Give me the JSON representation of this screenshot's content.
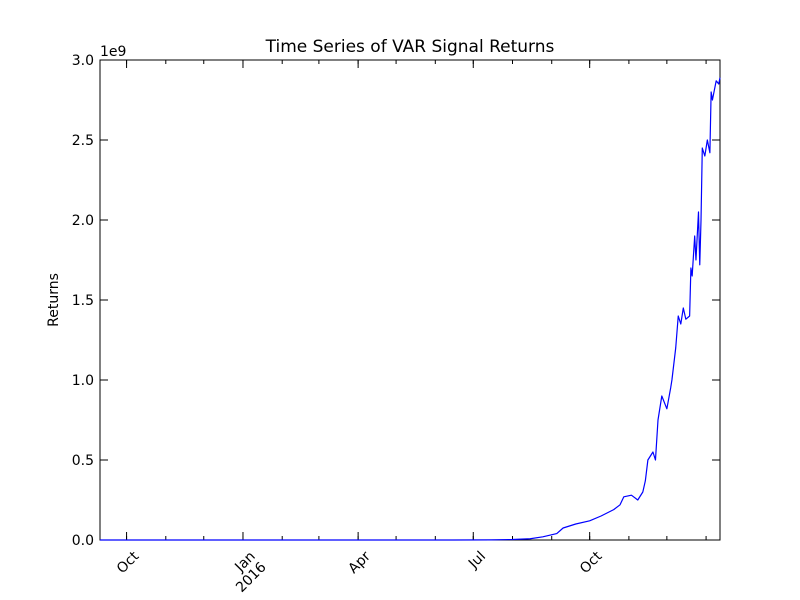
{
  "chart_data": {
    "type": "line",
    "title": "Time Series of VAR Signal Returns",
    "xlabel": "",
    "ylabel": "Returns",
    "y_offset_label": "1e9",
    "x_ticks": [
      {
        "date": "2015-10-01",
        "label": "Oct"
      },
      {
        "date": "2016-01-01",
        "label": "Jan\n2016"
      },
      {
        "date": "2016-04-01",
        "label": "Apr"
      },
      {
        "date": "2016-07-01",
        "label": "Jul"
      },
      {
        "date": "2016-10-01",
        "label": "Oct"
      }
    ],
    "y_ticks": [
      {
        "value": 0.0,
        "label": "0.0"
      },
      {
        "value": 0.5,
        "label": "0.5"
      },
      {
        "value": 1.0,
        "label": "1.0"
      },
      {
        "value": 1.5,
        "label": "1.5"
      },
      {
        "value": 2.0,
        "label": "2.0"
      },
      {
        "value": 2.5,
        "label": "2.5"
      },
      {
        "value": 3.0,
        "label": "3.0"
      }
    ],
    "xlim": [
      "2015-09-10",
      "2017-01-12"
    ],
    "ylim": [
      0,
      3.0
    ],
    "y_units_multiplier": "1e9",
    "grid": false,
    "line_color": "#0000ff",
    "series": [
      {
        "x": [
          "2015-09-10",
          "2015-11-01",
          "2016-01-01",
          "2016-03-01",
          "2016-05-01",
          "2016-06-15",
          "2016-07-15",
          "2016-08-01",
          "2016-08-15",
          "2016-08-25",
          "2016-09-05",
          "2016-09-10",
          "2016-09-20",
          "2016-10-01",
          "2016-10-10",
          "2016-10-20",
          "2016-10-25",
          "2016-10-28",
          "2016-11-03",
          "2016-11-08",
          "2016-11-12",
          "2016-11-14",
          "2016-11-16",
          "2016-11-20",
          "2016-11-22",
          "2016-11-24",
          "2016-11-27",
          "2016-12-01",
          "2016-12-04",
          "2016-12-05",
          "2016-12-08",
          "2016-12-10",
          "2016-12-12",
          "2016-12-14",
          "2016-12-16",
          "2016-12-19",
          "2016-12-20",
          "2016-12-21",
          "2016-12-23",
          "2016-12-24",
          "2016-12-26",
          "2016-12-27",
          "2016-12-28",
          "2016-12-29",
          "2016-12-31",
          "2017-01-02",
          "2017-01-04",
          "2017-01-05",
          "2017-01-06",
          "2017-01-09",
          "2017-01-11",
          "2017-01-12"
        ],
        "y": [
          0.0,
          0.0,
          0.0,
          0.0,
          0.0,
          0.0,
          0.001,
          0.003,
          0.008,
          0.02,
          0.04,
          0.075,
          0.1,
          0.12,
          0.15,
          0.19,
          0.22,
          0.27,
          0.28,
          0.25,
          0.3,
          0.37,
          0.5,
          0.55,
          0.5,
          0.75,
          0.9,
          0.82,
          0.95,
          1.0,
          1.2,
          1.4,
          1.35,
          1.45,
          1.38,
          1.4,
          1.7,
          1.65,
          1.9,
          1.75,
          2.05,
          1.72,
          2.0,
          2.45,
          2.4,
          2.5,
          2.42,
          2.8,
          2.75,
          2.87,
          2.85,
          2.89
        ]
      }
    ]
  }
}
